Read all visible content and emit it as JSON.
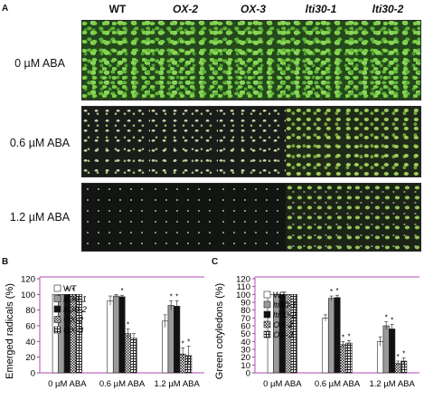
{
  "panel_a": {
    "letter": "A",
    "genotypes": [
      "WT",
      "OX-2",
      "OX-3",
      "lti30-1",
      "lti30-2"
    ],
    "conditions": [
      "0 µM ABA",
      "0.6 µM ABA",
      "1.2 µM ABA"
    ]
  },
  "panel_b": {
    "letter": "B"
  },
  "panel_c": {
    "letter": "C"
  },
  "chart_data": [
    {
      "type": "bar",
      "ylabel": "Emerged radicals (%)",
      "ylim": [
        0,
        120
      ],
      "yticks": [
        "0",
        "20",
        "40",
        "60",
        "80",
        "100",
        "120"
      ],
      "categories": [
        "0 µM ABA",
        "0.6 µM ABA",
        "1.2 µM ABA"
      ],
      "legend_position": "top-left",
      "series": [
        {
          "name": "WT",
          "pattern": "white",
          "values": [
            100,
            92,
            66
          ],
          "errors": [
            0,
            6,
            8
          ]
        },
        {
          "name": "lti30-1",
          "pattern": "gray",
          "values": [
            100,
            98,
            86
          ],
          "errors": [
            0,
            2,
            6
          ]
        },
        {
          "name": "lti30-2",
          "pattern": "black",
          "values": [
            100,
            97,
            85
          ],
          "errors": [
            0,
            2,
            7
          ]
        },
        {
          "name": "OX-2",
          "pattern": "checker",
          "values": [
            100,
            50,
            24
          ],
          "errors": [
            0,
            6,
            8
          ]
        },
        {
          "name": "OX-3",
          "pattern": "hatch",
          "values": [
            100,
            44,
            22
          ],
          "errors": [
            0,
            6,
            12
          ]
        }
      ],
      "significance": [
        [
          false,
          false,
          false
        ],
        [
          false,
          false,
          true
        ],
        [
          true,
          true,
          true
        ],
        [
          true,
          true,
          true
        ],
        [
          false,
          false,
          true
        ]
      ]
    },
    {
      "type": "bar",
      "ylabel": "Green cotyledons (%)",
      "ylim": [
        0,
        120
      ],
      "yticks": [
        "0",
        "10",
        "20",
        "30",
        "40",
        "50",
        "60",
        "70",
        "80",
        "90",
        "100",
        "110",
        "120"
      ],
      "categories": [
        "0 µM ABA",
        "0.6 µM ABA",
        "1.2 µM ABA"
      ],
      "legend_position": "top-left",
      "series": [
        {
          "name": "WT",
          "pattern": "white",
          "values": [
            100,
            70,
            40
          ],
          "errors": [
            0,
            4,
            6
          ]
        },
        {
          "name": "lti30-1",
          "pattern": "gray",
          "values": [
            100,
            95,
            60
          ],
          "errors": [
            0,
            3,
            5
          ]
        },
        {
          "name": "lti30-2",
          "pattern": "black",
          "values": [
            100,
            96,
            56
          ],
          "errors": [
            0,
            3,
            6
          ]
        },
        {
          "name": "OX-2",
          "pattern": "checker",
          "values": [
            100,
            36,
            12
          ],
          "errors": [
            0,
            4,
            3
          ]
        },
        {
          "name": "OX-3",
          "pattern": "hatch",
          "values": [
            100,
            38,
            15
          ],
          "errors": [
            0,
            3,
            4
          ]
        }
      ],
      "significance": [
        [
          false,
          false,
          false
        ],
        [
          false,
          true,
          true
        ],
        [
          false,
          true,
          true
        ],
        [
          false,
          true,
          true
        ],
        [
          false,
          true,
          true
        ]
      ]
    }
  ]
}
